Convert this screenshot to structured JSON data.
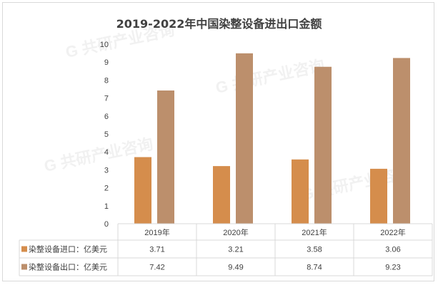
{
  "chart_data": {
    "type": "bar",
    "title": "2019-2022年中国染整设备进出口金额",
    "categories": [
      "2019年",
      "2020年",
      "2021年",
      "2022年"
    ],
    "series": [
      {
        "name": "染整设备进口：亿美元",
        "values": [
          3.71,
          3.21,
          3.58,
          3.06
        ],
        "color": "#d58d4c"
      },
      {
        "name": "染整设备出口：亿美元",
        "values": [
          7.42,
          9.49,
          8.74,
          9.23
        ],
        "color": "#bc8f6c"
      }
    ],
    "ylim": [
      0,
      10
    ],
    "yticks": [
      0,
      1,
      2,
      3,
      4,
      5,
      6,
      7,
      8,
      9,
      10
    ],
    "xlabel": "",
    "ylabel": "",
    "legend": "data-table"
  }
}
